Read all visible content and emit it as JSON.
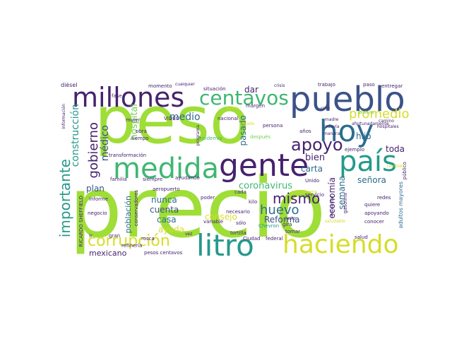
{
  "words": {
    "peso": "peso",
    "precio": "precio",
    "millones": "millones",
    "pueblo": "pueblo",
    "hoy": "hoy",
    "centavos": "centavos",
    "medida": "medida",
    "gente": "gente",
    "pais": "país",
    "litro": "litro",
    "haciendo": "haciendo",
    "corrupcion": "corrupción",
    "importante": "importante",
    "apoyo": "apoyo",
    "promedio": "promedio",
    "gobierno": "gobierno",
    "construccion": "construcción",
    "medico": "médico",
    "mismo": "mismo",
    "huevo": "huevo",
    "coronavirus": "coronavirus",
    "economia": "economía",
    "semana": "semana",
    "reforma": "Reforma",
    "bien": "bien",
    "carta": "carta",
    "senora": "señora",
    "hijo": "hijo",
    "toda": "toda",
    "pasado": "pasado",
    "dar": "dar",
    "medio": "medio",
    "hospital": "hospital",
    "plan": "plan",
    "cuenta": "cuenta",
    "nunca": "nunca",
    "casa": "casa",
    "consejo": "consejo",
    "ayuda": "ayuda",
    "mexicano": "mexicano",
    "poblacion": "población",
    "diesel": "diésel",
    "fase": "fase",
    "momento": "momento",
    "situacion": "situación",
    "margen": "margen",
    "trabajo": "trabajo",
    "paso": "paso",
    "entregar": "entregar",
    "gasolinera": "gasolinera",
    "persona": "persona",
    "anos": "años",
    "ejemplo": "ejemplo",
    "publico": "público",
    "nacional": "nacional",
    "epidemia": "epidemia",
    "despues": "después",
    "transformacion": "transformación",
    "familia": "familia",
    "siempre": "siempre",
    "ayudando": "ayudando",
    "aeropuerto": "aeropuerto",
    "poder": "poder",
    "servicio": "servicio",
    "unido": "Unido",
    "gasolina": "gasolina",
    "adultos_mayores": "adultos mayores",
    "quiere": "quiere",
    "apoyando": "apoyando",
    "conocer": "conocer",
    "redes": "redes",
    "salud": "salud",
    "pesos_centavos": "pesos centavos",
    "rosca": "rosca",
    "ciudad": "Ciudad",
    "federal": "federal",
    "tortilla": "tortilla",
    "solo": "sólo",
    "tomar": "tomar",
    "gira": "gira",
    "kilo": "kilo",
    "cada": "cada",
    "necesario": "necesario",
    "variable": "variable",
    "chevron": "Chevron",
    "informe": "informe",
    "ricardo": "RICARDO SHEFFIELD",
    "negocio": "negocio",
    "ir": "ir",
    "gran": "gran",
    "refineria": "refinería",
    "conservadores": "conservadores",
    "video": "VIDEO",
    "mujer": "mujer",
    "obra": "obra",
    "tiempo": "tiempo",
    "cualquier": "cualquier",
    "crisis": "crisis",
    "creo": "creo",
    "madre": "madre",
    "todavia": "todavía",
    "manera": "manera",
    "camino": "camino",
    "hospitales": "hospitales",
    "afortunadamente": "afortunadamente",
    "programa": "programa",
    "justo": "justo",
    "bienestar": "bienestar",
    "informacion": "información",
    "precios": "precios",
    "tambien": "también",
    "estado": "estado",
    "puede": "puede",
    "vez": "vez",
    "saludable": "saludable"
  }
}
